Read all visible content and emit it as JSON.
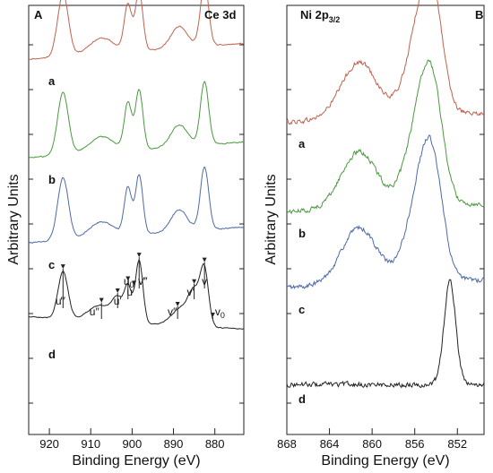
{
  "chart_data": [
    {
      "panel": "A",
      "type": "line",
      "title": "Ce 3d",
      "xlabel": "Binding Energy (eV)",
      "ylabel": "Arbitrary Units",
      "xlim": [
        925,
        873
      ],
      "x_reversed": true,
      "x_ticks": [
        920,
        910,
        900,
        890,
        880
      ],
      "ylim": [
        0,
        1
      ],
      "grid": false,
      "series": [
        {
          "name": "a",
          "color": "#c0624e",
          "peaks": [
            [
              916.7,
              1.0,
              1.3
            ],
            [
              907.4,
              0.25,
              3.0
            ],
            [
              901.0,
              0.75,
              0.9
            ],
            [
              898.3,
              0.95,
              0.9
            ],
            [
              888.6,
              0.35,
              2.0
            ],
            [
              882.5,
              1.0,
              1.0
            ]
          ],
          "bg": [
            0.2,
            0.45
          ],
          "noise": 0.008
        },
        {
          "name": "b",
          "color": "#4a9a3f",
          "peaks": [
            [
              916.7,
              1.0,
              1.3
            ],
            [
              907.4,
              0.25,
              3.0
            ],
            [
              901.0,
              0.75,
              0.9
            ],
            [
              898.3,
              0.95,
              0.9
            ],
            [
              888.6,
              0.35,
              2.0
            ],
            [
              882.5,
              1.0,
              1.0
            ]
          ],
          "bg": [
            0.2,
            0.45
          ],
          "noise": 0.008
        },
        {
          "name": "c",
          "color": "#4e6aa8",
          "peaks": [
            [
              916.7,
              1.0,
              1.3
            ],
            [
              907.4,
              0.25,
              3.0
            ],
            [
              901.0,
              0.75,
              0.9
            ],
            [
              898.3,
              0.95,
              0.9
            ],
            [
              888.6,
              0.35,
              2.0
            ],
            [
              882.5,
              1.0,
              1.0
            ]
          ],
          "bg": [
            0.2,
            0.45
          ],
          "noise": 0.008
        },
        {
          "name": "d",
          "color": "#222222",
          "peaks": [
            [
              916.7,
              0.75,
              1.2
            ],
            [
              907.4,
              0.25,
              3.0
            ],
            [
              903.5,
              0.3,
              1.2
            ],
            [
              901.0,
              0.55,
              0.9
            ],
            [
              898.3,
              1.0,
              0.9
            ],
            [
              888.6,
              0.25,
              2.0
            ],
            [
              885.0,
              0.55,
              1.5
            ],
            [
              882.5,
              0.85,
              1.0
            ]
          ],
          "bg": [
            0.45,
            0.25
          ],
          "noise": 0.006
        }
      ],
      "annotations": [
        {
          "label": "u‴",
          "x": 916.7
        },
        {
          "label": "u″",
          "x": 907.4
        },
        {
          "label": "u′",
          "x": 903.5
        },
        {
          "label": "u",
          "x": 901.0
        },
        {
          "label": "u0",
          "x": 899.5
        },
        {
          "label": "v″",
          "x": 889.0
        },
        {
          "label": "v‴",
          "x": 898.3
        },
        {
          "label": "v′",
          "x": 885.0
        },
        {
          "label": "v",
          "x": 882.5
        },
        {
          "label": "v0",
          "x": 880.5
        }
      ]
    },
    {
      "panel": "B",
      "type": "line",
      "title": "Ni 2p3/2",
      "xlabel": "Binding Energy (eV)",
      "ylabel": "Arbitrary Units",
      "xlim": [
        868,
        849.5
      ],
      "x_reversed": true,
      "x_ticks": [
        868,
        864,
        860,
        856,
        852
      ],
      "ylim": [
        0,
        1
      ],
      "grid": false,
      "series": [
        {
          "name": "a",
          "color": "#c0624e",
          "peaks": [
            [
              861.2,
              0.55,
              1.7
            ],
            [
              855.5,
              0.8,
              1.3
            ],
            [
              854.3,
              0.8,
              1.0
            ]
          ],
          "bg": [
            0.12,
            0.2
          ],
          "noise": 0.02
        },
        {
          "name": "b",
          "color": "#4a9a3f",
          "peaks": [
            [
              861.2,
              0.55,
              1.7
            ],
            [
              855.5,
              0.8,
              1.3
            ],
            [
              854.3,
              0.8,
              1.0
            ]
          ],
          "bg": [
            0.12,
            0.2
          ],
          "noise": 0.02
        },
        {
          "name": "c",
          "color": "#4e6aa8",
          "peaks": [
            [
              861.2,
              0.55,
              1.7
            ],
            [
              855.5,
              0.8,
              1.3
            ],
            [
              854.3,
              0.8,
              1.0
            ]
          ],
          "bg": [
            0.12,
            0.2
          ],
          "noise": 0.02
        },
        {
          "name": "d",
          "color": "#222222",
          "peaks": [
            [
              852.7,
              1.0,
              0.55
            ]
          ],
          "bg": [
            0.05,
            0.05
          ],
          "noise": 0.02
        }
      ]
    }
  ]
}
